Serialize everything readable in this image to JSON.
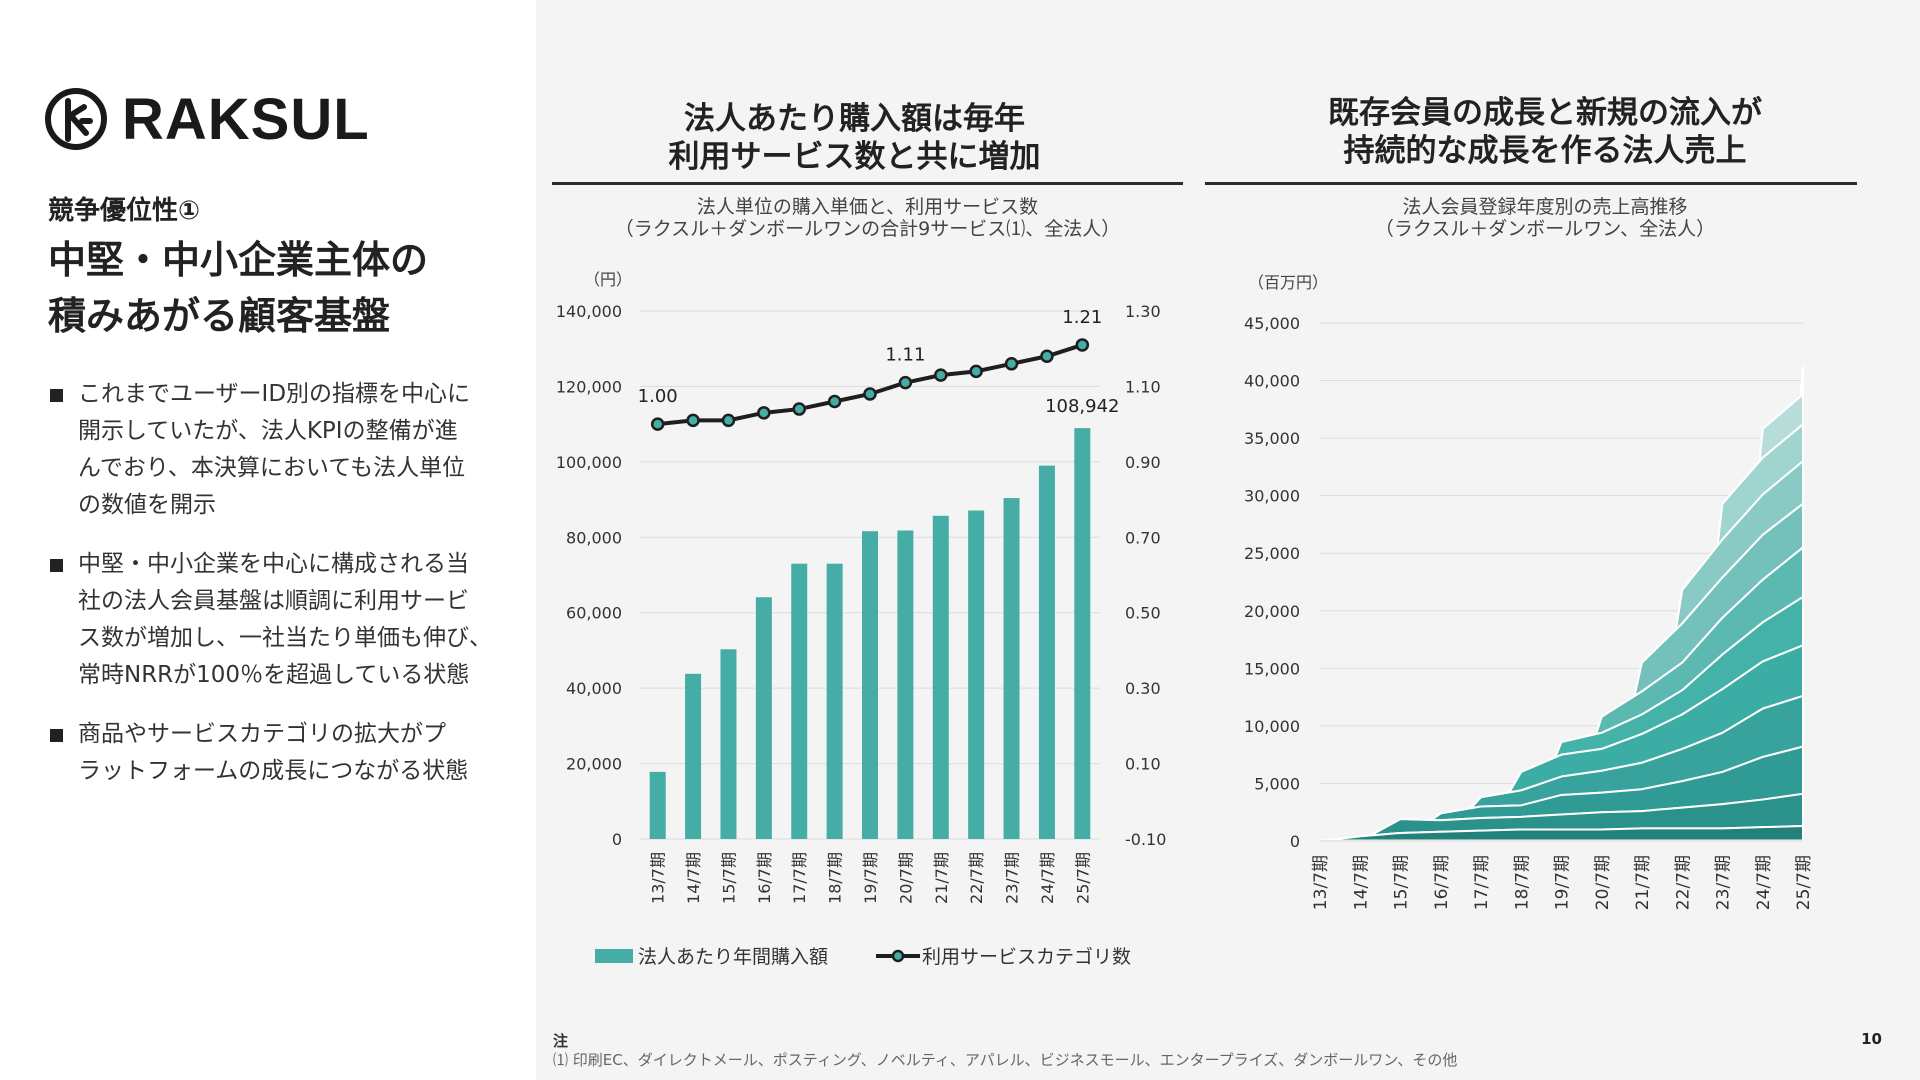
{
  "logo": {
    "text": "RAKSUL",
    "mark": "raksul-mark"
  },
  "left": {
    "subtitle": "競争優位性①",
    "headline": [
      "中堅・中小企業主体の",
      "積みあがる顧客基盤"
    ],
    "bullets": [
      [
        "これまでユーザーID別の指標を中心に",
        "開示していたが、法人KPIの整備が進",
        "んでおり、本決算においても法人単位",
        "の数値を開示"
      ],
      [
        "中堅・中小企業を中心に構成される当",
        "社の法人会員基盤は順調に利用サービ",
        "ス数が増加し、一社当たり単価も伸び、",
        "常時NRRが100％を超過している状態"
      ],
      [
        "商品やサービスカテゴリの拡大がプ",
        "ラットフォームの成長につながる状態"
      ]
    ]
  },
  "chart1": {
    "title": [
      "法人あたり購入額は毎年",
      "利用サービス数と共に増加"
    ],
    "subtitle": [
      "法人単位の購入単価と、利用サービス数",
      "（ラクスル＋ダンボールワンの合計9サービス⑴、全法人）"
    ]
  },
  "chart2": {
    "title": [
      "既存会員の成長と新規の流入が",
      "持続的な成長を作る法人売上"
    ],
    "subtitle": [
      "法人会員登録年度別の売上高推移",
      "（ラクスル＋ダンボールワン、全法人）"
    ]
  },
  "colors": {
    "bar": "#45ada6",
    "line": "#1e1e1e",
    "dot": "#45ada6",
    "grid": "#dcdcdc"
  },
  "chart_data": [
    {
      "type": "bar",
      "title": "法人単位の購入単価と、利用サービス数",
      "categories": [
        "13/7期",
        "14/7期",
        "15/7期",
        "16/7期",
        "17/7期",
        "18/7期",
        "19/7期",
        "20/7期",
        "21/7期",
        "22/7期",
        "23/7期",
        "24/7期",
        "25/7期"
      ],
      "y_unit": "（円）",
      "ylim": [
        0,
        140000
      ],
      "yticks": [
        "0",
        "20,000",
        "40,000",
        "60,000",
        "80,000",
        "100,000",
        "120,000",
        "140,000"
      ],
      "y2lim": [
        -0.1,
        1.3
      ],
      "y2ticks": [
        "-0.10",
        "0.10",
        "0.30",
        "0.50",
        "0.70",
        "0.90",
        "1.10",
        "1.30"
      ],
      "series": [
        {
          "name": "法人あたり年間購入額",
          "type": "bar",
          "axis": "left",
          "values": [
            17800,
            43800,
            50300,
            64100,
            73000,
            73000,
            81600,
            81800,
            85700,
            87100,
            90400,
            99000,
            108942
          ]
        },
        {
          "name": "利用サービスカテゴリ数",
          "type": "line",
          "axis": "right",
          "values": [
            1.0,
            1.01,
            1.01,
            1.03,
            1.04,
            1.06,
            1.08,
            1.11,
            1.13,
            1.14,
            1.16,
            1.18,
            1.21
          ]
        }
      ],
      "labels": [
        {
          "series": 1,
          "index": 0,
          "text": "1.00"
        },
        {
          "series": 1,
          "index": 7,
          "text": "1.11"
        },
        {
          "series": 1,
          "index": 12,
          "text": "1.21"
        },
        {
          "series": 0,
          "index": 12,
          "text": "108,942"
        }
      ],
      "legend": "bottom"
    },
    {
      "type": "area",
      "title": "法人会員登録年度別の売上高推移",
      "categories": [
        "13/7期",
        "14/7期",
        "15/7期",
        "16/7期",
        "17/7期",
        "18/7期",
        "19/7期",
        "20/7期",
        "21/7期",
        "22/7期",
        "23/7期",
        "24/7期",
        "25/7期"
      ],
      "y_unit": "（百万円）",
      "ylim": [
        0,
        45000
      ],
      "yticks": [
        "0",
        "5,000",
        "10,000",
        "15,000",
        "20,000",
        "25,000",
        "30,000",
        "35,000",
        "40,000",
        "45,000"
      ],
      "stacked_totals": {
        "13/7": [
          30,
          30,
          30,
          30,
          30,
          30,
          30,
          30,
          30,
          30,
          30,
          30,
          30
        ],
        "14/7": [
          0,
          400,
          700,
          800,
          900,
          1000,
          1000,
          1000,
          1100,
          1100,
          1100,
          1200,
          1300
        ],
        "15/7": [
          0,
          0,
          1900,
          1800,
          2000,
          2100,
          2300,
          2500,
          2600,
          2900,
          3200,
          3600,
          4100
        ],
        "16/7": [
          0,
          0,
          0,
          2400,
          3000,
          3100,
          4000,
          4200,
          4500,
          5200,
          6000,
          7300,
          8200
        ],
        "17/7": [
          0,
          0,
          0,
          0,
          3800,
          4400,
          5600,
          6100,
          6800,
          8000,
          9400,
          11500,
          12600
        ],
        "18/7": [
          0,
          0,
          0,
          0,
          0,
          6000,
          7500,
          8000,
          9300,
          11000,
          13200,
          15600,
          17000
        ],
        "19/7": [
          0,
          0,
          0,
          0,
          0,
          0,
          8600,
          9400,
          11000,
          13100,
          16200,
          19000,
          21200
        ],
        "20/7": [
          0,
          0,
          0,
          0,
          0,
          0,
          0,
          10800,
          13000,
          15500,
          19400,
          22700,
          25500
        ],
        "21/7": [
          0,
          0,
          0,
          0,
          0,
          0,
          0,
          0,
          15500,
          18900,
          22900,
          26600,
          29300
        ],
        "22/7": [
          0,
          0,
          0,
          0,
          0,
          0,
          0,
          0,
          0,
          21800,
          26200,
          30100,
          33000
        ],
        "23/7": [
          0,
          0,
          0,
          0,
          0,
          0,
          0,
          0,
          0,
          0,
          29300,
          33300,
          36200
        ],
        "24/7": [
          0,
          0,
          0,
          0,
          0,
          0,
          0,
          0,
          0,
          0,
          0,
          35800,
          38800
        ],
        "25/7": [
          0,
          0,
          0,
          0,
          0,
          0,
          0,
          0,
          0,
          0,
          0,
          0,
          41200
        ]
      },
      "layer_colors": [
        "#1f6f68",
        "#24817a",
        "#2a928a",
        "#2f9b94",
        "#37a39c",
        "#3cada5",
        "#45b2aa",
        "#5cb9b1",
        "#73c1ba",
        "#8acac4",
        "#a0d4cf",
        "#b6ddd9",
        "#cce6e4"
      ]
    }
  ],
  "note": {
    "head": "注",
    "text": "⑴ 印刷EC、ダイレクトメール、ポスティング、ノベルティ、アパレル、ビジネスモール、エンタープライズ、ダンボールワン、その他"
  },
  "page_number": "10"
}
